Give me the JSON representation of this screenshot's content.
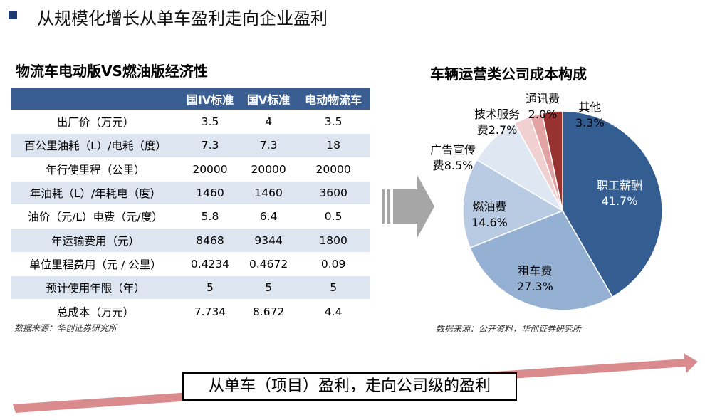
{
  "header": {
    "title": "从规模化增长从单车盈利走向企业盈利"
  },
  "table_section": {
    "title": "物流车电动版VS燃油版经济性",
    "columns": [
      "国IV标准",
      "国V标准",
      "电动物流车"
    ],
    "rows": [
      {
        "label": "出厂价（万元）",
        "values": [
          "3.5",
          "4",
          "3.5"
        ]
      },
      {
        "label": "百公里油耗（L）/电耗（度）",
        "values": [
          "7.3",
          "7.3",
          "18"
        ]
      },
      {
        "label": "年行使里程（公里）",
        "values": [
          "20000",
          "20000",
          "20000"
        ]
      },
      {
        "label": "年油耗（L）/年耗电（度）",
        "values": [
          "1460",
          "1460",
          "3600"
        ]
      },
      {
        "label": "油价（元/L）电费（元/度）",
        "values": [
          "5.8",
          "6.4",
          "0.5"
        ]
      },
      {
        "label": "年运输费用（元）",
        "values": [
          "8468",
          "9344",
          "1800"
        ]
      },
      {
        "label": "单位里程费用（元 / 公里）",
        "values": [
          "0.4234",
          "0.4672",
          "0.09"
        ]
      },
      {
        "label": "预计使用年限（年）",
        "values": [
          "5",
          "5",
          "5"
        ]
      },
      {
        "label": "总成本（万元）",
        "values": [
          "7.734",
          "8.672",
          "4.4"
        ]
      }
    ],
    "source": "数据来源：华创证券研究所"
  },
  "chart_data": {
    "type": "pie",
    "title": "车辆运营类公司成本构成",
    "slices": [
      {
        "name": "职工薪酬",
        "value": 41.7,
        "label": "41.7%",
        "color": "#345e91"
      },
      {
        "name": "租车费",
        "value": 27.3,
        "label": "27.3%",
        "color": "#94b0d3"
      },
      {
        "name": "燃油费",
        "value": 14.6,
        "label": "14.6%",
        "color": "#b8cbe3"
      },
      {
        "name": "广告宣传费",
        "value": 8.5,
        "label": "8.5%",
        "color": "#dfe7f2"
      },
      {
        "name": "技术服务费",
        "value": 2.7,
        "label": "2.7%",
        "color": "#f0d0d0"
      },
      {
        "name": "通讯费",
        "value": 2.0,
        "label": "2.0%",
        "color": "#e4a3a3"
      },
      {
        "name": "其他",
        "value": 3.3,
        "label": "3.3%",
        "color": "#963331"
      }
    ],
    "source": "数据来源：公开资料，华创证券研究所"
  },
  "conclusion": {
    "text": "从单车（项目）盈利，走向公司级的盈利"
  },
  "colors": {
    "header_bullet": "#1f3b6e",
    "table_header": "#3a5d92",
    "table_stripe": "#dde5f1",
    "trend_arrow": "#d98b8e",
    "transition_arrow": "#a6a6a6"
  }
}
